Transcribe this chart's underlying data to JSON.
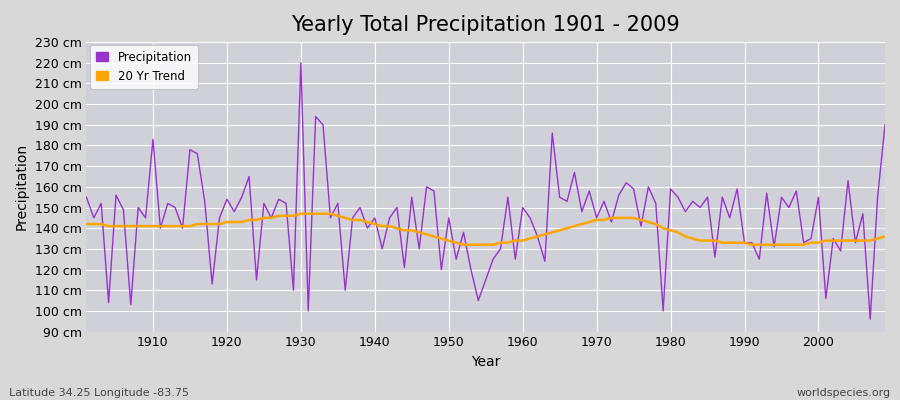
{
  "title": "Yearly Total Precipitation 1901 - 2009",
  "xlabel": "Year",
  "ylabel": "Precipitation",
  "lat_lon_label": "Latitude 34.25 Longitude -83.75",
  "source_label": "worldspecies.org",
  "ylim": [
    90,
    230
  ],
  "xlim": [
    1901,
    2009
  ],
  "ytick_step": 10,
  "xtick_step": 10,
  "years": [
    1901,
    1902,
    1903,
    1904,
    1905,
    1906,
    1907,
    1908,
    1909,
    1910,
    1911,
    1912,
    1913,
    1914,
    1915,
    1916,
    1917,
    1918,
    1919,
    1920,
    1921,
    1922,
    1923,
    1924,
    1925,
    1926,
    1927,
    1928,
    1929,
    1930,
    1931,
    1932,
    1933,
    1934,
    1935,
    1936,
    1937,
    1938,
    1939,
    1940,
    1941,
    1942,
    1943,
    1944,
    1945,
    1946,
    1947,
    1948,
    1949,
    1950,
    1951,
    1952,
    1953,
    1954,
    1955,
    1956,
    1957,
    1958,
    1959,
    1960,
    1961,
    1962,
    1963,
    1964,
    1965,
    1966,
    1967,
    1968,
    1969,
    1970,
    1971,
    1972,
    1973,
    1974,
    1975,
    1976,
    1977,
    1978,
    1979,
    1980,
    1981,
    1982,
    1983,
    1984,
    1985,
    1986,
    1987,
    1988,
    1989,
    1990,
    1991,
    1992,
    1993,
    1994,
    1995,
    1996,
    1997,
    1998,
    1999,
    2000,
    2001,
    2002,
    2003,
    2004,
    2005,
    2006,
    2007,
    2008,
    2009
  ],
  "precipitation": [
    155,
    145,
    152,
    104,
    156,
    149,
    103,
    150,
    145,
    183,
    140,
    152,
    150,
    140,
    178,
    176,
    153,
    113,
    145,
    154,
    148,
    155,
    165,
    115,
    152,
    145,
    154,
    152,
    110,
    220,
    100,
    194,
    190,
    145,
    152,
    110,
    145,
    150,
    140,
    145,
    130,
    145,
    150,
    121,
    155,
    130,
    160,
    158,
    120,
    145,
    125,
    138,
    120,
    105,
    115,
    125,
    130,
    155,
    125,
    150,
    145,
    136,
    124,
    186,
    155,
    153,
    167,
    148,
    158,
    145,
    153,
    143,
    156,
    162,
    159,
    141,
    160,
    152,
    100,
    159,
    155,
    148,
    153,
    150,
    155,
    126,
    155,
    145,
    159,
    133,
    133,
    125,
    157,
    131,
    155,
    150,
    158,
    133,
    135,
    155,
    106,
    135,
    129,
    163,
    133,
    147,
    96,
    155,
    190
  ],
  "trend": [
    142,
    142,
    142,
    141,
    141,
    141,
    141,
    141,
    141,
    141,
    141,
    141,
    141,
    141,
    141,
    142,
    142,
    142,
    142,
    143,
    143,
    143,
    144,
    144,
    145,
    145,
    146,
    146,
    146,
    147,
    147,
    147,
    147,
    147,
    146,
    145,
    144,
    144,
    143,
    142,
    141,
    141,
    140,
    139,
    139,
    138,
    137,
    136,
    135,
    134,
    133,
    132,
    132,
    132,
    132,
    132,
    133,
    133,
    134,
    134,
    135,
    136,
    137,
    138,
    139,
    140,
    141,
    142,
    143,
    144,
    144,
    145,
    145,
    145,
    145,
    144,
    143,
    142,
    140,
    139,
    138,
    136,
    135,
    134,
    134,
    134,
    133,
    133,
    133,
    133,
    132,
    132,
    132,
    132,
    132,
    132,
    132,
    132,
    133,
    133,
    134,
    134,
    134,
    134,
    134,
    134,
    134,
    135,
    136
  ],
  "precip_color": "#9932CC",
  "trend_color": "#FFA500",
  "bg_color": "#d8d8d8",
  "plot_bg_color": "#d0d0d8",
  "grid_color": "#ffffff",
  "legend_bg": "#ffffff",
  "title_fontsize": 15,
  "axis_label_fontsize": 10,
  "tick_label_fontsize": 9,
  "bottom_text_color": "#444444"
}
